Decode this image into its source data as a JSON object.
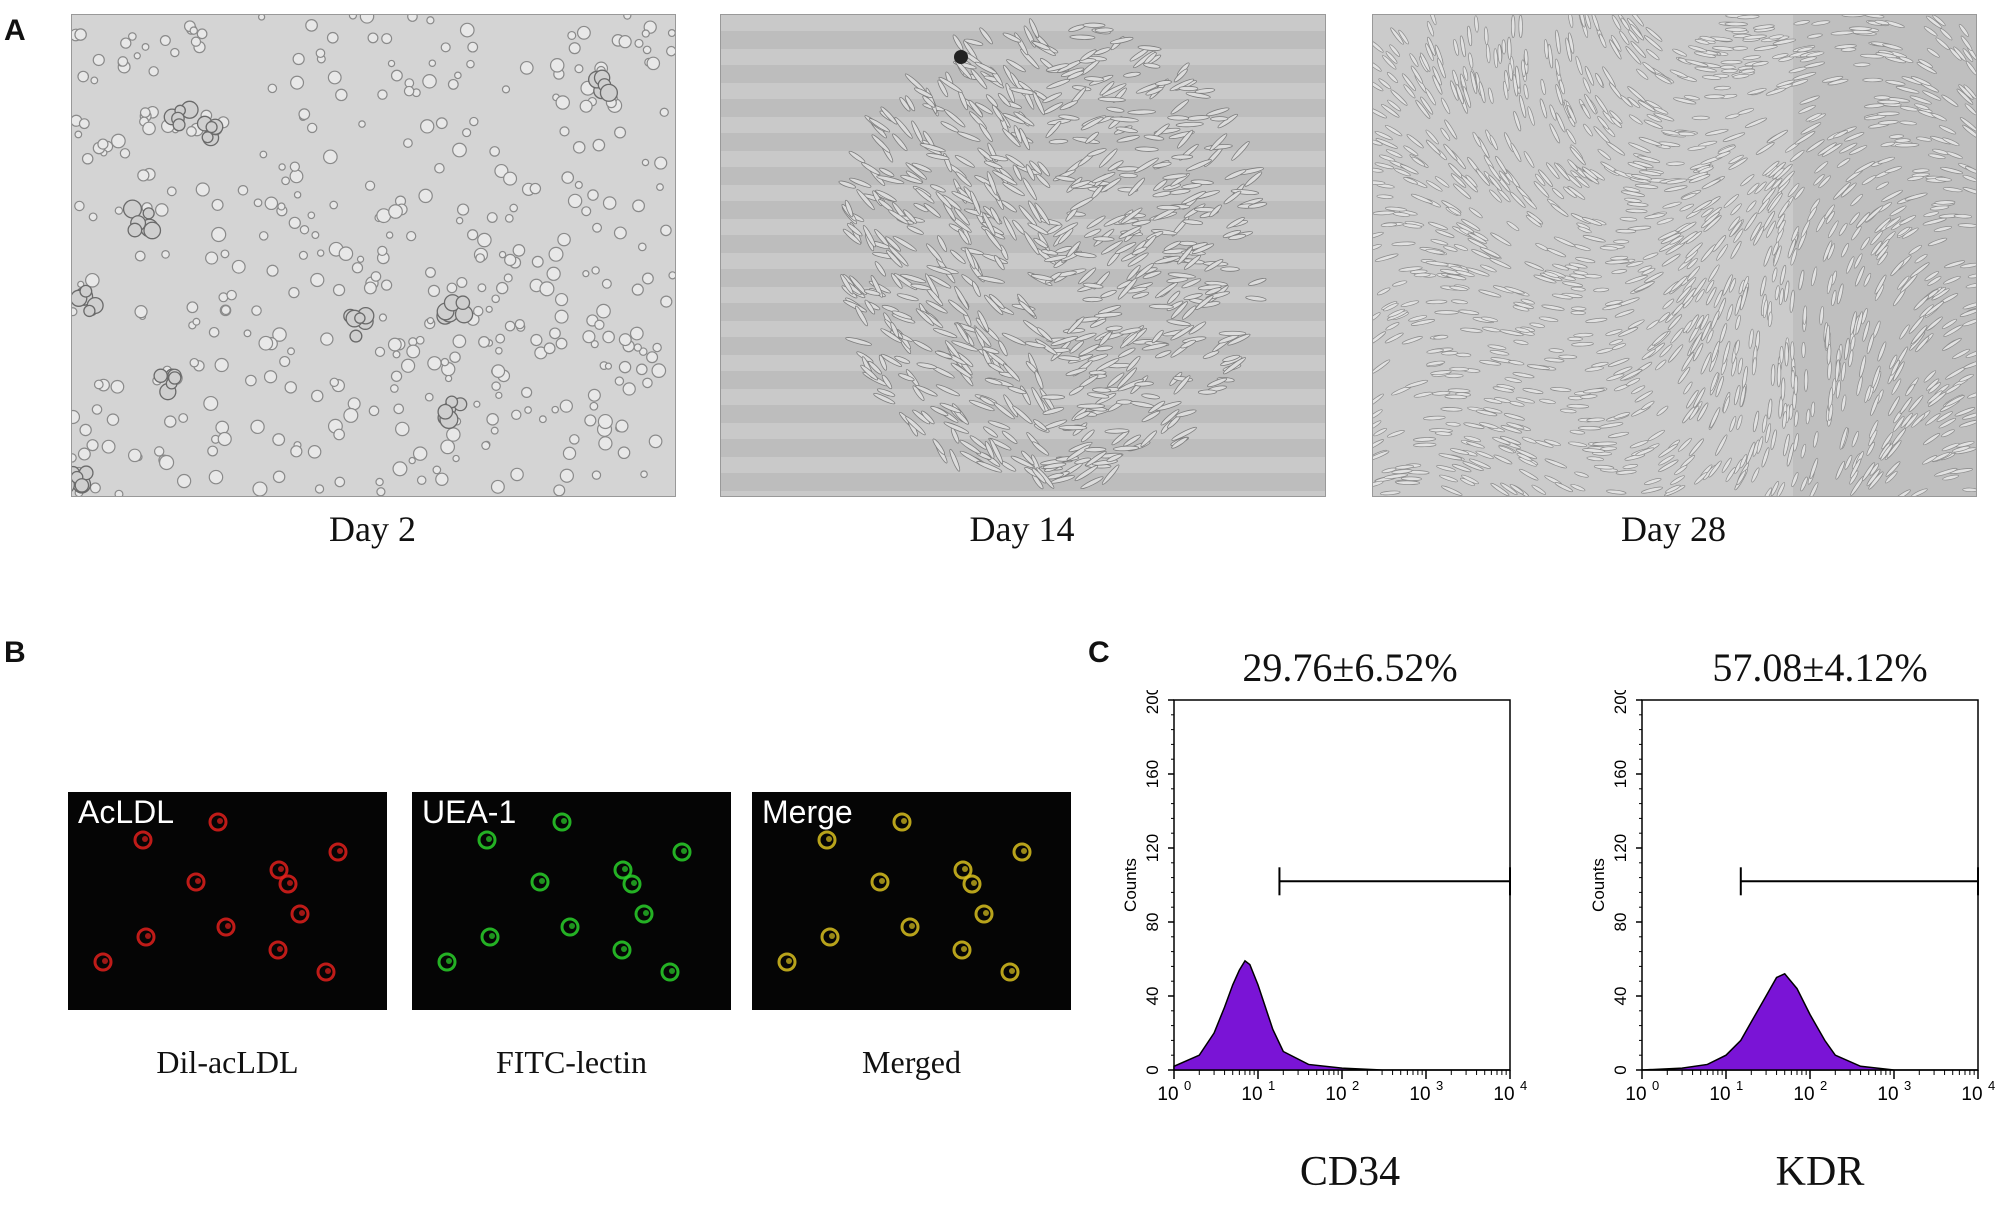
{
  "panels": {
    "a": {
      "letter": "A",
      "images": [
        {
          "caption": "Day 2"
        },
        {
          "caption": "Day 14"
        },
        {
          "caption": "Day 28"
        }
      ]
    },
    "b": {
      "letter": "B",
      "images": [
        {
          "label": "AcLDL",
          "caption": "Dil-acLDL",
          "color": "#e0201c"
        },
        {
          "label": "UEA-1",
          "caption": "FITC-lectin",
          "color": "#2ad02a"
        },
        {
          "label": "Merge",
          "caption": "Merged",
          "color": "#d8c020"
        }
      ]
    },
    "c": {
      "letter": "C",
      "histograms": [
        {
          "percentage": "29.76±6.52%",
          "marker": "CD34",
          "peak_decade": 0.8
        },
        {
          "percentage": "57.08±4.12%",
          "marker": "KDR",
          "peak_decade": 1.6
        }
      ],
      "y_axis_label": "Counts",
      "y_ticks": [
        "0",
        "40",
        "80",
        "120",
        "160",
        "200"
      ],
      "x_ticks": [
        "10",
        "10",
        "10",
        "10",
        "10"
      ],
      "x_tick_exponents": [
        "0",
        "1",
        "2",
        "3",
        "4"
      ],
      "fill_color": "#7a14d6"
    }
  },
  "chart_data": [
    {
      "type": "area",
      "title": "29.76±6.52%",
      "xlabel": "CD34",
      "ylabel": "Counts",
      "x_scale": "log",
      "xlim": [
        1,
        10000
      ],
      "ylim": [
        0,
        200
      ],
      "x": [
        1,
        2,
        3,
        4,
        5,
        6,
        7,
        8,
        10,
        15,
        20,
        40,
        100,
        300,
        1000,
        10000
      ],
      "values": [
        2,
        8,
        20,
        34,
        46,
        54,
        59,
        57,
        46,
        22,
        10,
        3,
        1,
        0,
        0,
        0
      ]
    },
    {
      "type": "area",
      "title": "57.08±4.12%",
      "xlabel": "KDR",
      "ylabel": "Counts",
      "x_scale": "log",
      "xlim": [
        1,
        10000
      ],
      "ylim": [
        0,
        200
      ],
      "x": [
        1,
        3,
        6,
        10,
        15,
        20,
        30,
        40,
        50,
        70,
        100,
        150,
        200,
        400,
        1000,
        10000
      ],
      "values": [
        0,
        1,
        3,
        8,
        16,
        26,
        40,
        50,
        52,
        44,
        30,
        16,
        8,
        2,
        0,
        0
      ]
    }
  ]
}
